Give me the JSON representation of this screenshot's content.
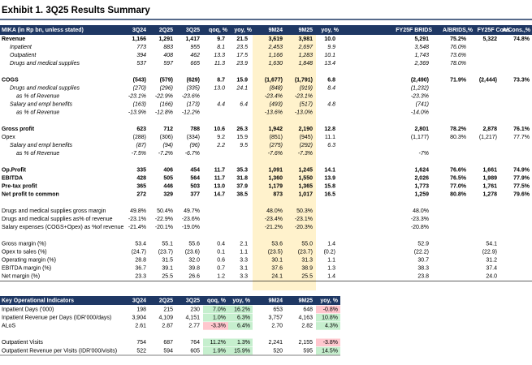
{
  "title": "Exhibit 1. 3Q25 Results Summary",
  "main_table": {
    "header": [
      "MIKA (in Rp bn, unless stated)",
      "3Q24",
      "2Q25",
      "3Q25",
      "qoq, %",
      "yoy, %",
      "9M24",
      "9M25",
      "yoy, %",
      "FY25F BRIDS",
      "A/BRIDS,%",
      "FY25F Cons.",
      "A/Cons.,%"
    ],
    "rows": [
      [
        "Revenue",
        "1,166",
        "1,291",
        "1,417",
        "9.7",
        "21.5",
        "3,619",
        "3,981",
        "10.0",
        "5,291",
        "75.2%",
        "5,322",
        "74.8%"
      ],
      [
        "Inpatient",
        "773",
        "883",
        "955",
        "8.1",
        "23.5",
        "2,453",
        "2,697",
        "9.9",
        "3,548",
        "76.0%",
        null,
        null
      ],
      [
        "Outpatient",
        "394",
        "408",
        "462",
        "13.3",
        "17.5",
        "1,166",
        "1,283",
        "10.1",
        "1,743",
        "73.6%",
        null,
        null
      ],
      [
        "Drugs and medical supplies",
        "537",
        "597",
        "665",
        "11.3",
        "23.9",
        "1,630",
        "1,848",
        "13.4",
        "2,369",
        "78.0%",
        null,
        null
      ],
      [
        "COGS",
        "(543)",
        "(579)",
        "(629)",
        "8.7",
        "15.9",
        "(1,677)",
        "(1,791)",
        "6.8",
        "(2,490)",
        "71.9%",
        "(2,444)",
        "73.3%"
      ],
      [
        "Drugs and medical supplies",
        "(270)",
        "(296)",
        "(335)",
        "13.0",
        "24.1",
        "(848)",
        "(919)",
        "8.4",
        "(1,232)",
        null,
        null,
        null
      ],
      [
        "as % of Revenue",
        "-23.1%",
        "-22.9%",
        "-23.6%",
        null,
        null,
        "-23.4%",
        "-23.1%",
        null,
        "-23.3%",
        null,
        null,
        null
      ],
      [
        "Salary and empl benefits",
        "(163)",
        "(166)",
        "(173)",
        "4.4",
        "6.4",
        "(493)",
        "(517)",
        "4.8",
        "(741)",
        null,
        null,
        null
      ],
      [
        "as % of Revenue",
        "-13.9%",
        "-12.8%",
        "-12.2%",
        null,
        null,
        "-13.6%",
        "-13.0%",
        null,
        "-14.0%",
        null,
        null,
        null
      ],
      [
        "Gross profit",
        "623",
        "712",
        "788",
        "10.6",
        "26.3",
        "1,942",
        "2,190",
        "12.8",
        "2,801",
        "78.2%",
        "2,878",
        "76.1%"
      ],
      [
        "Opex",
        "(288)",
        "(306)",
        "(334)",
        "9.2",
        "15.9",
        "(851)",
        "(945)",
        "11.1",
        "(1,177)",
        "80.3%",
        "(1,217)",
        "77.7%"
      ],
      [
        "Salary and empl benefits",
        "(87)",
        "(94)",
        "(96)",
        "2.2",
        "9.5",
        "(275)",
        "(292)",
        "6.3",
        null,
        null,
        null,
        null
      ],
      [
        "as % of Revenue",
        "-7.5%",
        "-7.2%",
        "-6.7%",
        null,
        null,
        "-7.6%",
        "-7.3%",
        null,
        "-7%",
        null,
        null,
        null
      ],
      [
        "Op.Profit",
        "335",
        "406",
        "454",
        "11.7",
        "35.3",
        "1,091",
        "1,245",
        "14.1",
        "1,624",
        "76.6%",
        "1,661",
        "74.9%"
      ],
      [
        "EBITDA",
        "428",
        "505",
        "564",
        "11.7",
        "31.8",
        "1,360",
        "1,550",
        "13.9",
        "2,026",
        "76.5%",
        "1,989",
        "77.9%"
      ],
      [
        "Pre-tax profit",
        "365",
        "446",
        "503",
        "13.0",
        "37.9",
        "1,179",
        "1,365",
        "15.8",
        "1,773",
        "77.0%",
        "1,761",
        "77.5%"
      ],
      [
        "Net profit to common",
        "272",
        "329",
        "377",
        "14.7",
        "38.5",
        "873",
        "1,017",
        "16.5",
        "1,259",
        "80.8%",
        "1,278",
        "79.6%"
      ],
      [
        "Drugs and medical supplies gross margin",
        "49.8%",
        "50.4%",
        "49.7%",
        null,
        null,
        "48.0%",
        "50.3%",
        null,
        "48.0%",
        null,
        null,
        null
      ],
      [
        "Drugs and medical supplies as% of revenue",
        "-23.1%",
        "-22.9%",
        "-23.6%",
        null,
        null,
        "-23.4%",
        "-23.1%",
        null,
        "-23.3%",
        null,
        null,
        null
      ],
      [
        "Salary expenses (COGS+Opex) as %of revenue",
        "-21.4%",
        "-20.1%",
        "-19.0%",
        null,
        null,
        "-21.2%",
        "-20.3%",
        null,
        "-20.8%",
        null,
        null,
        null
      ],
      [
        "Gross margin (%)",
        "53.4",
        "55.1",
        "55.6",
        "0.4",
        "2.1",
        "53.6",
        "55.0",
        "1.4",
        "52.9",
        null,
        "54.1",
        null
      ],
      [
        "Opex to sales (%)",
        "(24.7)",
        "(23.7)",
        "(23.6)",
        "0.1",
        "1.1",
        "(23.5)",
        "(23.7)",
        "(0.2)",
        "(22.2)",
        null,
        "(22.9)",
        null
      ],
      [
        "Operating margin (%)",
        "28.8",
        "31.5",
        "32.0",
        "0.6",
        "3.3",
        "30.1",
        "31.3",
        "1.1",
        "30.7",
        null,
        "31.2",
        null
      ],
      [
        "EBITDA margin (%)",
        "36.7",
        "39.1",
        "39.8",
        "0.7",
        "3.1",
        "37.6",
        "38.9",
        "1.3",
        "38.3",
        null,
        "37.4",
        null
      ],
      [
        "Net margin (%)",
        "23.3",
        "25.5",
        "26.6",
        "1.2",
        "3.3",
        "24.1",
        "25.5",
        "1.4",
        "23.8",
        null,
        "24.0",
        null
      ]
    ]
  },
  "kpi_table": {
    "header": [
      "Key Operational Indicators",
      "3Q24",
      "2Q25",
      "3Q25",
      "qoq, %",
      "yoy, %",
      "9M24",
      "9M25",
      "yoy, %"
    ],
    "rows": [
      [
        "Inpatient Days ('000)",
        "198",
        "215",
        "230",
        "7.0%",
        "16.2%",
        "653",
        "648",
        "-0.8%"
      ],
      [
        "Inpatient Revenue per Days (IDR'000/days)",
        "3,904",
        "4,109",
        "4,151",
        "1.0%",
        "6.3%",
        "3,757",
        "4,163",
        "10.8%"
      ],
      [
        "ALoS",
        "2.61",
        "2.87",
        "2.77",
        "-3.3%",
        "6.4%",
        "2.70",
        "2.82",
        "4.3%"
      ],
      [
        "Outpatient Visits",
        "754",
        "687",
        "764",
        "11.2%",
        "1.3%",
        "2,241",
        "2,155",
        "-3.8%"
      ],
      [
        "Outpatient Revenue per Visits (IDR'000/visits)",
        "522",
        "594",
        "605",
        "1.9%",
        "15.9%",
        "520",
        "595",
        "14.5%"
      ]
    ]
  }
}
